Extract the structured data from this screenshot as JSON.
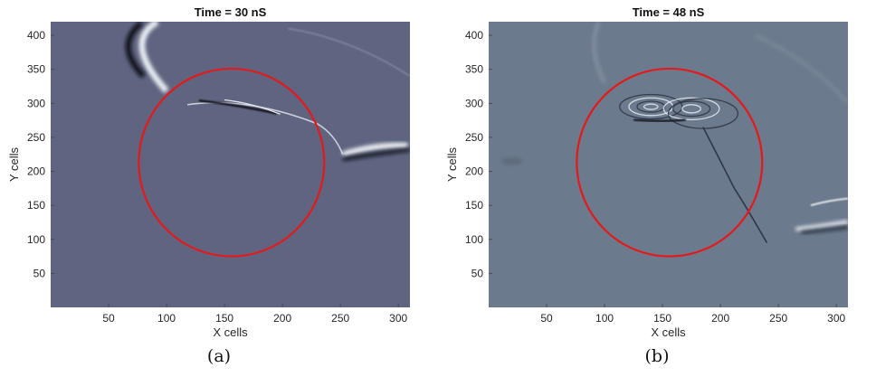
{
  "chart_data": [
    {
      "type": "heatmap",
      "title": "Time = 30 nS",
      "xlabel": "X cells",
      "ylabel": "Y cells",
      "xlim": [
        0,
        310
      ],
      "ylim": [
        0,
        420
      ],
      "xticks": [
        "50",
        "100",
        "150",
        "200",
        "250",
        "300"
      ],
      "yticks": [
        "50",
        "100",
        "150",
        "200",
        "250",
        "300",
        "350",
        "400"
      ],
      "background_color": "#5f6480",
      "overlay": {
        "shape": "ellipse",
        "color": "#e31a1c",
        "center": [
          156,
          213
        ],
        "radii": [
          80,
          138
        ]
      },
      "caption": "(a)"
    },
    {
      "type": "heatmap",
      "title": "Time = 48 nS",
      "xlabel": "X cells",
      "ylabel": "Y cells",
      "xlim": [
        0,
        310
      ],
      "ylim": [
        0,
        420
      ],
      "xticks": [
        "50",
        "100",
        "150",
        "200",
        "250",
        "300"
      ],
      "yticks": [
        "50",
        "100",
        "150",
        "200",
        "250",
        "300",
        "350",
        "400"
      ],
      "background_color": "#6c7a8d",
      "overlay": {
        "shape": "ellipse",
        "color": "#e31a1c",
        "center": [
          156,
          213
        ],
        "radii": [
          80,
          138
        ]
      },
      "caption": "(b)"
    }
  ]
}
